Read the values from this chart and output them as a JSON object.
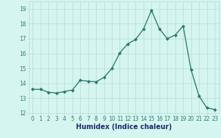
{
  "x": [
    0,
    1,
    2,
    3,
    4,
    5,
    6,
    7,
    8,
    9,
    10,
    11,
    12,
    13,
    14,
    15,
    16,
    17,
    18,
    19,
    20,
    21,
    22,
    23
  ],
  "y": [
    13.6,
    13.6,
    13.4,
    13.35,
    13.45,
    13.55,
    14.2,
    14.15,
    14.1,
    14.4,
    15.0,
    16.05,
    16.65,
    16.95,
    17.65,
    18.9,
    17.65,
    17.0,
    17.25,
    17.85,
    14.9,
    13.15,
    12.35,
    12.25
  ],
  "line_color": "#2a7a6a",
  "marker": "D",
  "marker_size": 2.2,
  "bg_color": "#d5f5ef",
  "grid_color": "#b8d8d4",
  "xlabel": "Humidex (Indice chaleur)",
  "xlabel_fontsize": 7,
  "xlabel_color": "#1a2a6e",
  "ylim": [
    12,
    19.5
  ],
  "xlim": [
    -0.5,
    23.5
  ],
  "yticks": [
    12,
    13,
    14,
    15,
    16,
    17,
    18,
    19
  ],
  "xticks": [
    0,
    1,
    2,
    3,
    4,
    5,
    6,
    7,
    8,
    9,
    10,
    11,
    12,
    13,
    14,
    15,
    16,
    17,
    18,
    19,
    20,
    21,
    22,
    23
  ],
  "tick_fontsize": 5.5,
  "line_width": 1.0
}
